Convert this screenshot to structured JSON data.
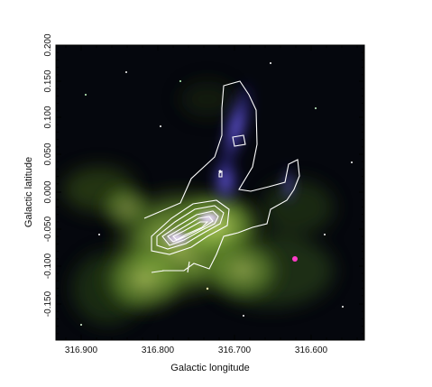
{
  "figure": {
    "xlabel": "Galactic longitude",
    "ylabel": "Galactic latitude",
    "x_ticks": [
      "316.900",
      "316.800",
      "316.700",
      "316.600"
    ],
    "y_ticks": [
      "0.200",
      "0.150",
      "0.100",
      "0.050",
      "0.000",
      "-0.050",
      "-0.100",
      "-0.150"
    ],
    "colors": {
      "background": "#05070d",
      "nebula": "#8ab040",
      "emission": "#5a4cff",
      "contour": "#ffffff"
    }
  }
}
